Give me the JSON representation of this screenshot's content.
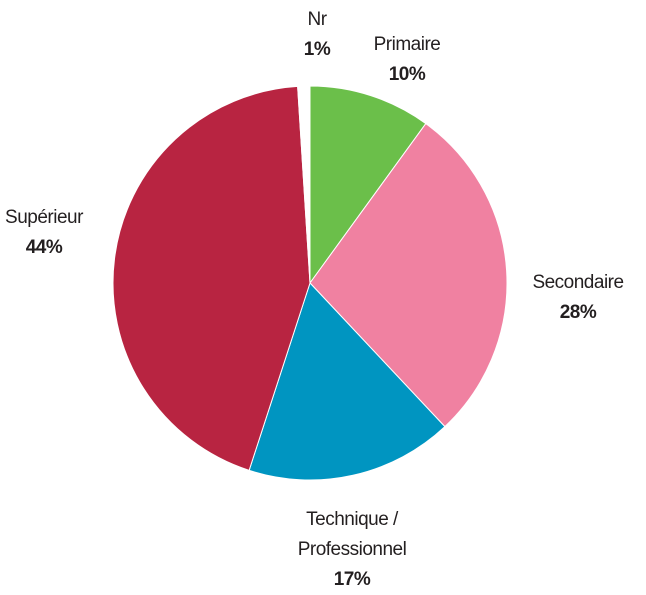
{
  "chart_data": {
    "type": "pie",
    "categories": [
      "Primaire",
      "Secondaire",
      "Technique / Professionnel",
      "Supérieur",
      "Nr"
    ],
    "values": [
      10,
      28,
      17,
      44,
      1
    ],
    "value_labels": [
      "10%",
      "28%",
      "17%",
      "44%",
      "1%"
    ],
    "colors": [
      "#6bbf4a",
      "#f081a1",
      "#0095c1",
      "#b82441",
      "#ffffff"
    ]
  }
}
